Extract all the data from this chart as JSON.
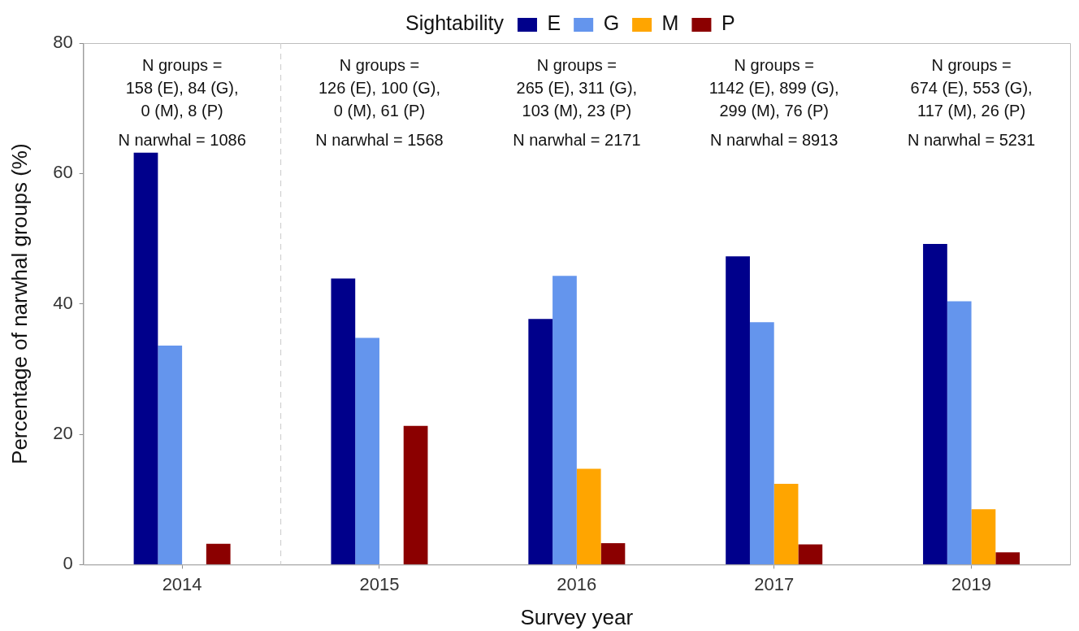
{
  "chart_data": {
    "type": "bar",
    "categories": [
      "2014",
      "2015",
      "2016",
      "2017",
      "2019"
    ],
    "series": [
      {
        "name": "E",
        "color": "#00008b",
        "values": [
          63.2,
          43.9,
          37.7,
          47.3,
          49.2
        ]
      },
      {
        "name": "G",
        "color": "#6495ed",
        "values": [
          33.6,
          34.8,
          44.3,
          37.2,
          40.4
        ]
      },
      {
        "name": "M",
        "color": "#ffa500",
        "values": [
          0,
          0,
          14.7,
          12.4,
          8.5
        ]
      },
      {
        "name": "P",
        "color": "#8b0000",
        "values": [
          3.2,
          21.3,
          3.3,
          3.1,
          1.9
        ]
      }
    ],
    "xlabel": "Survey year",
    "ylabel": "Percentage of narwhal groups (%)",
    "legend_title": "Sightability",
    "legend": "top",
    "ylim": [
      0,
      80
    ],
    "yticks": [
      0,
      20,
      40,
      60,
      80
    ],
    "annotations": [
      "N groups =\n158 (E), 84 (G),\n0 (M), 8 (P)",
      "N narwhal = 1086",
      "N groups =\n126 (E), 100 (G),\n0 (M), 61 (P)",
      "N narwhal = 1568",
      "N groups =\n265 (E), 311 (G),\n103 (M), 23 (P)",
      "N narwhal = 2171",
      "N groups =\n1142 (E), 899 (G),\n299 (M), 76 (P)",
      "N narwhal = 8913",
      "N groups =\n674 (E), 553 (G),\n117 (M), 26 (P)",
      "N narwhal = 5231"
    ]
  }
}
